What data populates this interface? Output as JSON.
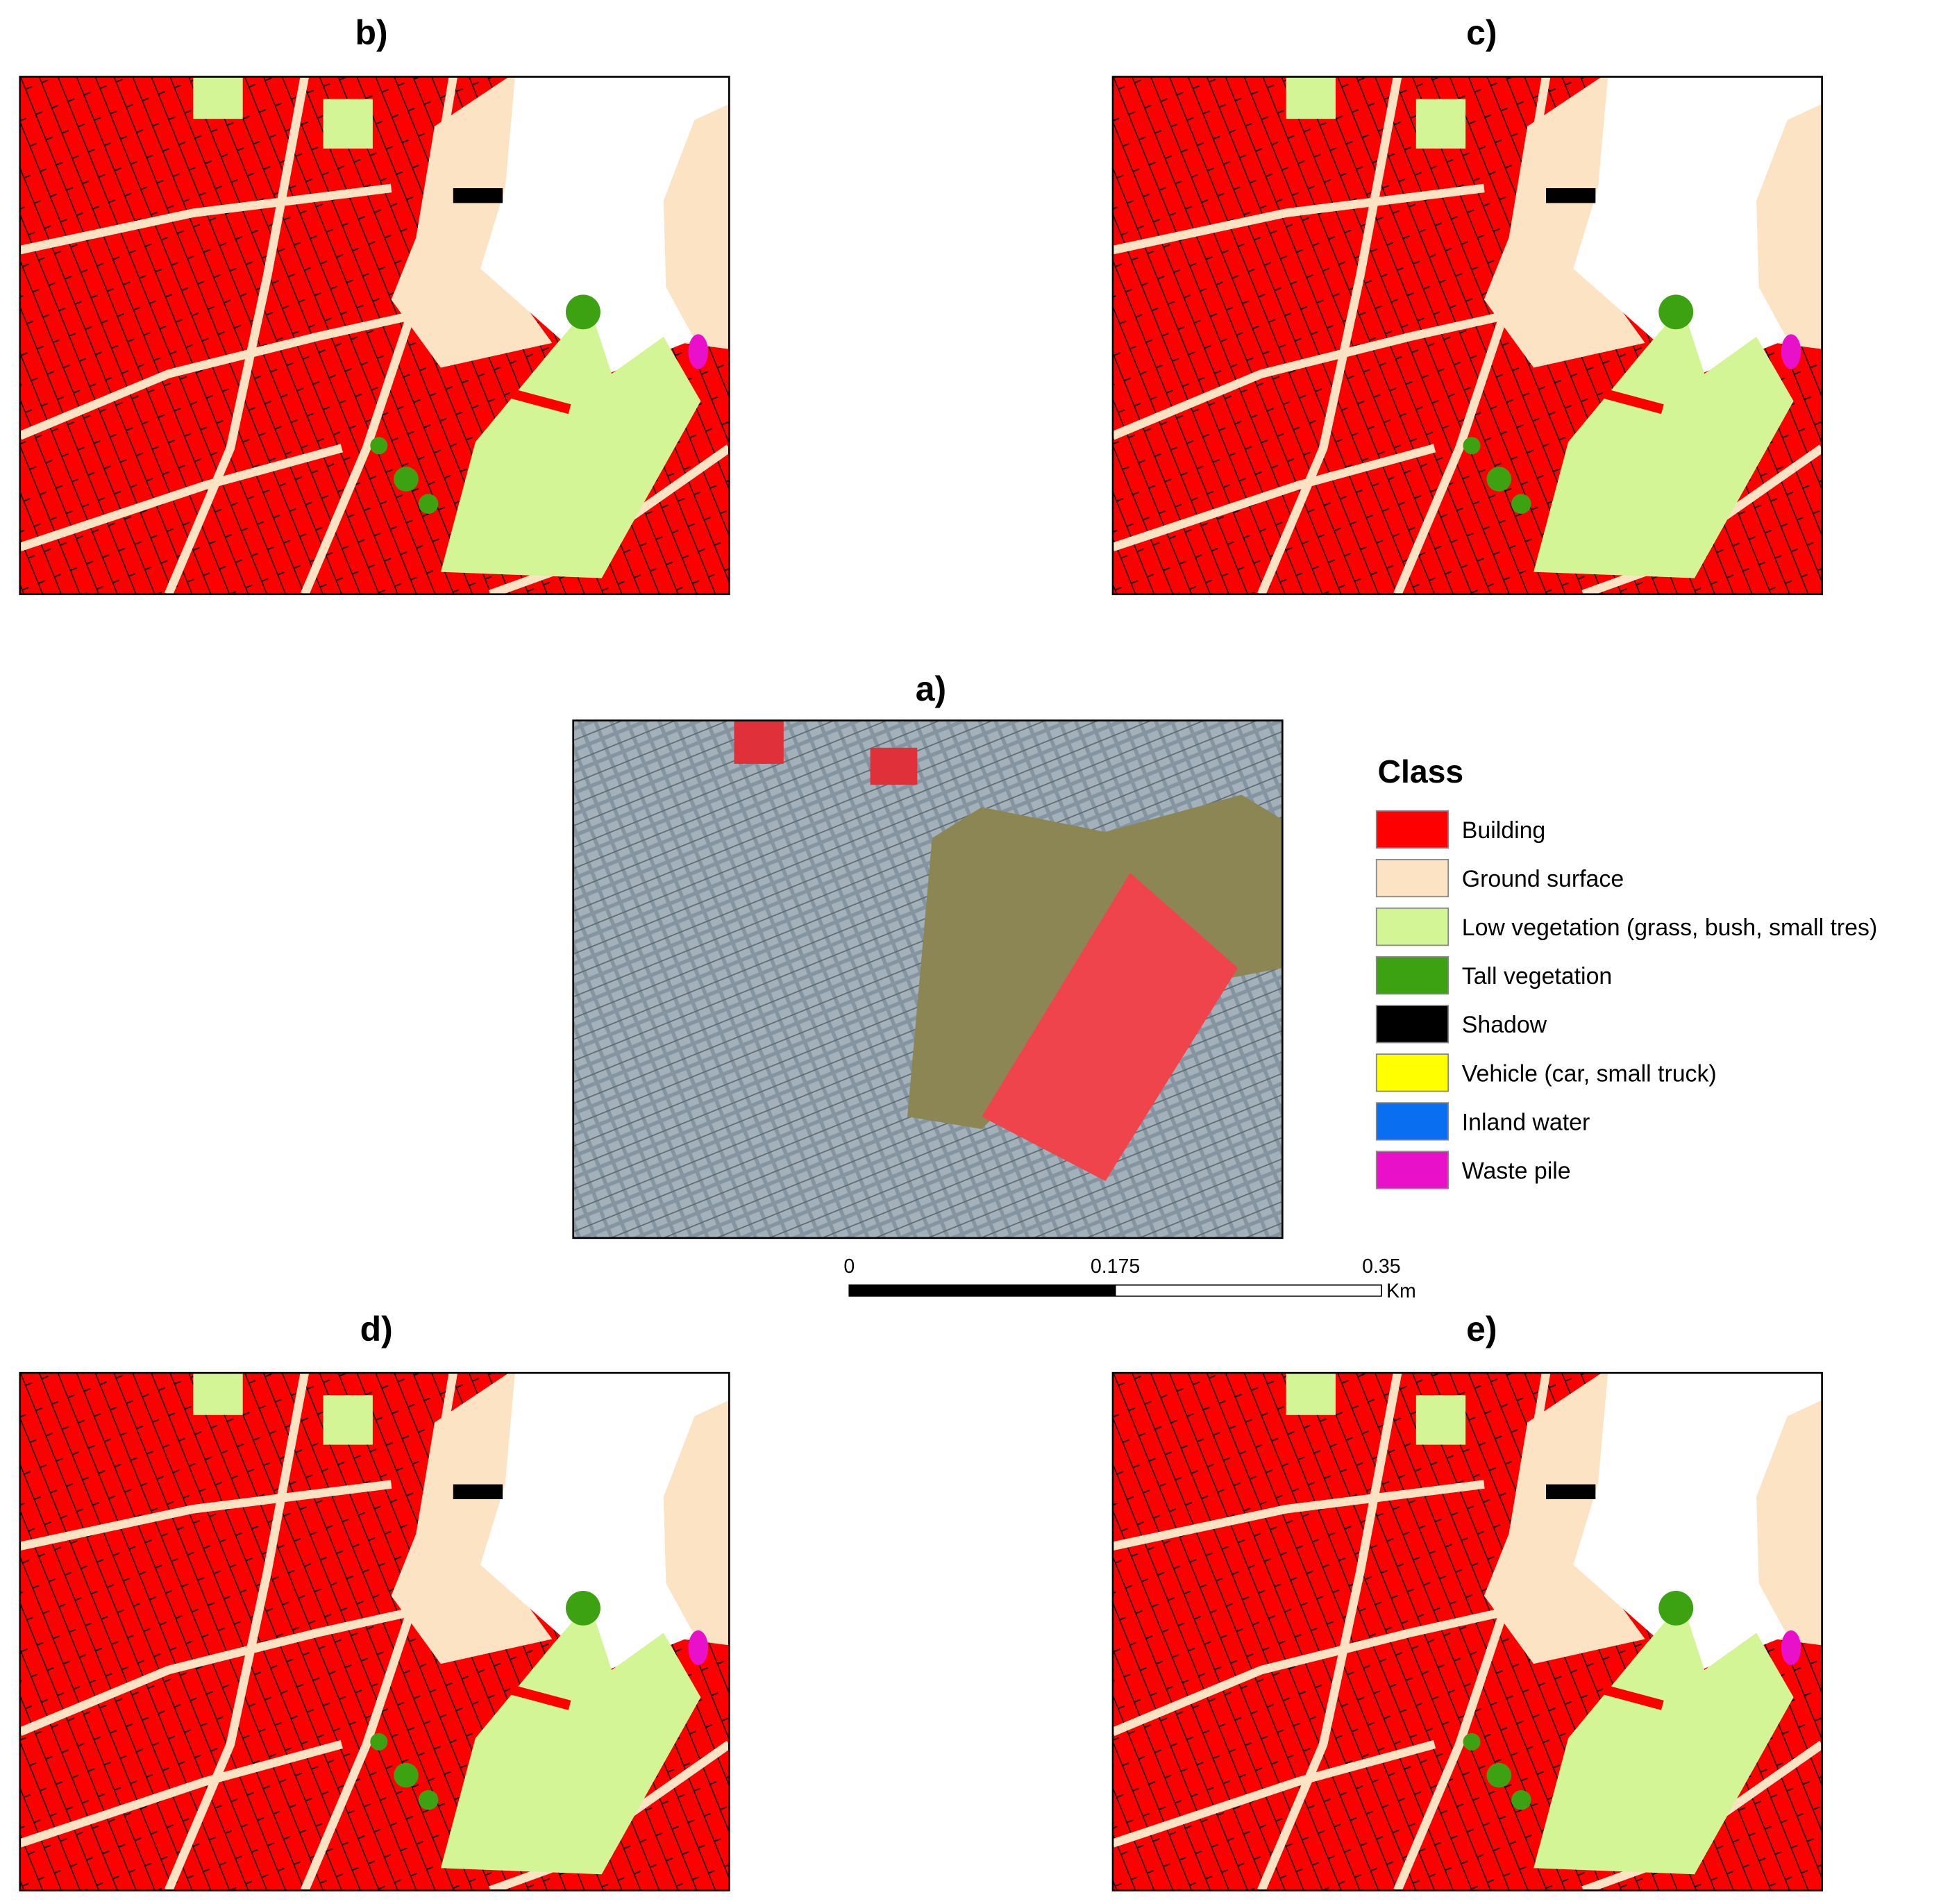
{
  "panels": [
    {
      "label": "b)"
    },
    {
      "label": "c)"
    },
    {
      "label": "a)"
    },
    {
      "label": "d)"
    },
    {
      "label": "e)"
    }
  ],
  "legend": {
    "title": "Class",
    "items": [
      {
        "label": "Building",
        "color": "#ff0000"
      },
      {
        "label": "Ground surface",
        "color": "#fbe3c3"
      },
      {
        "label": "Low vegetation (grass, bush, small tres)",
        "color": "#d4f596"
      },
      {
        "label": "Tall vegetation",
        "color": "#3ca212"
      },
      {
        "label": "Shadow",
        "color": "#000000"
      },
      {
        "label": "Vehicle (car, small truck)",
        "color": "#ffff00"
      },
      {
        "label": "Inland water",
        "color": "#0a6ef0"
      },
      {
        "label": "Waste pile",
        "color": "#e810c8"
      }
    ]
  },
  "scale_bar": {
    "ticks": [
      0,
      0.175,
      0.35
    ],
    "unit": "Km"
  }
}
